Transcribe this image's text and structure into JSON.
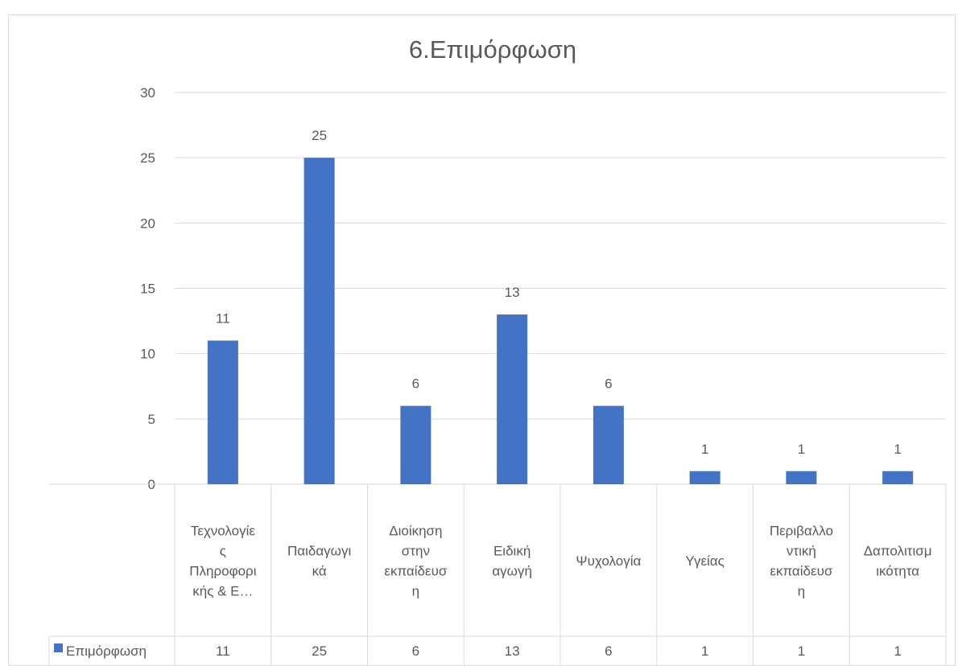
{
  "chart_data": {
    "type": "bar",
    "title": "6.Επιμόρφωση",
    "categories": [
      [
        "Τεχνολογίε",
        "ς",
        "Πληροφορι",
        "κής & Ε…"
      ],
      [
        "Παιδαγωγι",
        "κά"
      ],
      [
        "Διοίκηση",
        "στην",
        "εκπαίδευσ",
        "η"
      ],
      [
        "Ειδική",
        "αγωγή"
      ],
      [
        "Ψυχολογία"
      ],
      [
        "Υγείας"
      ],
      [
        "Περιβαλλο",
        "ντική",
        "εκπαίδευσ",
        "η"
      ],
      [
        "Δαπολιτισμ",
        "ικότητα"
      ]
    ],
    "series": [
      {
        "name": "Επιμόρφωση",
        "values": [
          11,
          25,
          6,
          13,
          6,
          1,
          1,
          1
        ]
      }
    ],
    "ylim": [
      0,
      30
    ],
    "yticks": [
      0,
      5,
      10,
      15,
      20,
      25,
      30
    ],
    "grid": true,
    "data_labels": true,
    "legend": "data-table",
    "data_table": true,
    "bar_color": "#4472C4",
    "grid_color": "#d9d9d9",
    "text_color": "#595959"
  }
}
